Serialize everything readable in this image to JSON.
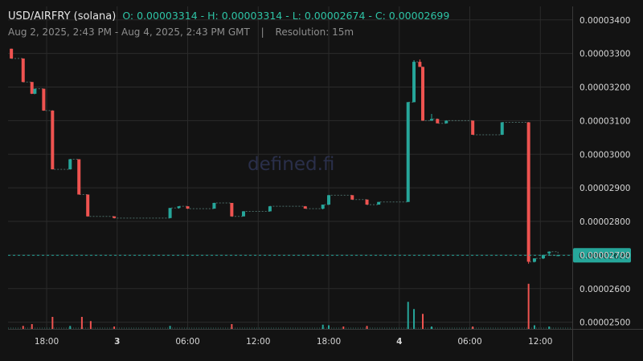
{
  "header": {
    "symbol": "USD/AIRFRY (solana)",
    "ohlc": "O: 0.00003314 - H: 0.00003314 - L: 0.00002674 - C: 0.00002699",
    "range": "Aug 2, 2025, 2:43 PM - Aug 4, 2025, 2:43 PM GMT",
    "separator": "|",
    "resolution": "Resolution: 15m"
  },
  "watermark": "defined.fi",
  "colors": {
    "up": "#26a69a",
    "down": "#ef5350",
    "background": "#131313",
    "grid": "#2b2b2b",
    "last_price": "#26a69a"
  },
  "chart_data": {
    "type": "candlestick",
    "title": "",
    "y_axis": {
      "ticks": [
        "0.00003400",
        "0.00003300",
        "0.00003200",
        "0.00003100",
        "0.00003000",
        "0.00002900",
        "0.00002800",
        "0.00002700",
        "0.00002600",
        "0.00002500"
      ],
      "range": [
        2.48e-05,
        3.44e-05
      ]
    },
    "x_axis": {
      "range": [
        "2025-08-02 14:43",
        "2025-08-04 14:43"
      ],
      "ticks": [
        {
          "label": "18:00",
          "time": "2025-08-02 18:00",
          "bold": false
        },
        {
          "label": "3",
          "time": "2025-08-03 00:00",
          "bold": true
        },
        {
          "label": "06:00",
          "time": "2025-08-03 06:00",
          "bold": false
        },
        {
          "label": "12:00",
          "time": "2025-08-03 12:00",
          "bold": false
        },
        {
          "label": "18:00",
          "time": "2025-08-03 18:00",
          "bold": false
        },
        {
          "label": "4",
          "time": "2025-08-04 00:00",
          "bold": true
        },
        {
          "label": "06:00",
          "time": "2025-08-04 06:00",
          "bold": false
        },
        {
          "label": "12:00",
          "time": "2025-08-04 12:00",
          "bold": false
        }
      ]
    },
    "last_price": {
      "value": 2.699e-05,
      "label": "0.00002699"
    },
    "candles": [
      {
        "t": "2025-08-02 15:00",
        "o": 3.314e-05,
        "h": 3.314e-05,
        "l": 3.285e-05,
        "c": 3.285e-05
      },
      {
        "t": "2025-08-02 16:00",
        "o": 3.285e-05,
        "h": 3.285e-05,
        "l": 3.215e-05,
        "c": 3.215e-05
      },
      {
        "t": "2025-08-02 16:45",
        "o": 3.215e-05,
        "h": 3.215e-05,
        "l": 3.18e-05,
        "c": 3.18e-05
      },
      {
        "t": "2025-08-02 17:00",
        "o": 3.18e-05,
        "h": 3.195e-05,
        "l": 3.18e-05,
        "c": 3.195e-05
      },
      {
        "t": "2025-08-02 17:45",
        "o": 3.195e-05,
        "h": 3.195e-05,
        "l": 3.13e-05,
        "c": 3.13e-05
      },
      {
        "t": "2025-08-02 18:30",
        "o": 3.13e-05,
        "h": 3.13e-05,
        "l": 2.955e-05,
        "c": 2.955e-05
      },
      {
        "t": "2025-08-02 20:00",
        "o": 2.955e-05,
        "h": 2.985e-05,
        "l": 2.955e-05,
        "c": 2.985e-05
      },
      {
        "t": "2025-08-02 20:45",
        "o": 2.985e-05,
        "h": 2.985e-05,
        "l": 2.88e-05,
        "c": 2.88e-05
      },
      {
        "t": "2025-08-02 21:30",
        "o": 2.88e-05,
        "h": 2.88e-05,
        "l": 2.815e-05,
        "c": 2.815e-05
      },
      {
        "t": "2025-08-02 23:45",
        "o": 2.815e-05,
        "h": 2.815e-05,
        "l": 2.81e-05,
        "c": 2.81e-05
      },
      {
        "t": "2025-08-03 04:30",
        "o": 2.81e-05,
        "h": 2.84e-05,
        "l": 2.81e-05,
        "c": 2.84e-05
      },
      {
        "t": "2025-08-03 05:15",
        "o": 2.84e-05,
        "h": 2.845e-05,
        "l": 2.838e-05,
        "c": 2.845e-05
      },
      {
        "t": "2025-08-03 06:00",
        "o": 2.845e-05,
        "h": 2.845e-05,
        "l": 2.838e-05,
        "c": 2.838e-05
      },
      {
        "t": "2025-08-03 08:15",
        "o": 2.838e-05,
        "h": 2.855e-05,
        "l": 2.838e-05,
        "c": 2.855e-05
      },
      {
        "t": "2025-08-03 09:45",
        "o": 2.855e-05,
        "h": 2.855e-05,
        "l": 2.815e-05,
        "c": 2.815e-05
      },
      {
        "t": "2025-08-03 10:45",
        "o": 2.815e-05,
        "h": 2.83e-05,
        "l": 2.815e-05,
        "c": 2.83e-05
      },
      {
        "t": "2025-08-03 13:00",
        "o": 2.83e-05,
        "h": 2.845e-05,
        "l": 2.83e-05,
        "c": 2.845e-05
      },
      {
        "t": "2025-08-03 16:00",
        "o": 2.845e-05,
        "h": 2.845e-05,
        "l": 2.838e-05,
        "c": 2.838e-05
      },
      {
        "t": "2025-08-03 17:30",
        "o": 2.838e-05,
        "h": 2.85e-05,
        "l": 2.836e-05,
        "c": 2.85e-05
      },
      {
        "t": "2025-08-03 18:00",
        "o": 2.85e-05,
        "h": 2.878e-05,
        "l": 2.85e-05,
        "c": 2.878e-05
      },
      {
        "t": "2025-08-03 20:00",
        "o": 2.878e-05,
        "h": 2.878e-05,
        "l": 2.865e-05,
        "c": 2.865e-05
      },
      {
        "t": "2025-08-03 21:15",
        "o": 2.865e-05,
        "h": 2.865e-05,
        "l": 2.85e-05,
        "c": 2.85e-05
      },
      {
        "t": "2025-08-03 22:15",
        "o": 2.85e-05,
        "h": 2.858e-05,
        "l": 2.85e-05,
        "c": 2.858e-05
      },
      {
        "t": "2025-08-04 00:45",
        "o": 2.858e-05,
        "h": 3.155e-05,
        "l": 2.858e-05,
        "c": 3.155e-05
      },
      {
        "t": "2025-08-04 01:15",
        "o": 3.155e-05,
        "h": 3.28e-05,
        "l": 3.155e-05,
        "c": 3.275e-05
      },
      {
        "t": "2025-08-04 01:45",
        "o": 3.275e-05,
        "h": 3.282e-05,
        "l": 3.26e-05,
        "c": 3.26e-05
      },
      {
        "t": "2025-08-04 02:00",
        "o": 3.26e-05,
        "h": 3.26e-05,
        "l": 3.1e-05,
        "c": 3.1e-05
      },
      {
        "t": "2025-08-04 02:45",
        "o": 3.1e-05,
        "h": 3.12e-05,
        "l": 3.1e-05,
        "c": 3.105e-05
      },
      {
        "t": "2025-08-04 03:15",
        "o": 3.105e-05,
        "h": 3.105e-05,
        "l": 3.092e-05,
        "c": 3.092e-05
      },
      {
        "t": "2025-08-04 04:00",
        "o": 3.092e-05,
        "h": 3.1e-05,
        "l": 3.092e-05,
        "c": 3.1e-05
      },
      {
        "t": "2025-08-04 06:15",
        "o": 3.1e-05,
        "h": 3.1e-05,
        "l": 3.058e-05,
        "c": 3.058e-05
      },
      {
        "t": "2025-08-04 08:45",
        "o": 3.058e-05,
        "h": 3.095e-05,
        "l": 3.058e-05,
        "c": 3.095e-05
      },
      {
        "t": "2025-08-04 11:00",
        "o": 3.095e-05,
        "h": 3.095e-05,
        "l": 2.674e-05,
        "c": 2.68e-05
      },
      {
        "t": "2025-08-04 11:30",
        "o": 2.68e-05,
        "h": 2.69e-05,
        "l": 2.678e-05,
        "c": 2.69e-05
      },
      {
        "t": "2025-08-04 12:15",
        "o": 2.69e-05,
        "h": 2.7e-05,
        "l": 2.688e-05,
        "c": 2.7e-05
      },
      {
        "t": "2025-08-04 12:45",
        "o": 2.705e-05,
        "h": 2.71e-05,
        "l": 2.7e-05,
        "c": 2.71e-05
      },
      {
        "t": "2025-08-04 13:30",
        "o": 2.699e-05,
        "h": 2.7e-05,
        "l": 2.699e-05,
        "c": 2.699e-05
      }
    ],
    "volume": [
      {
        "t": "2025-08-02 16:00",
        "v": 0.05,
        "dir": "down"
      },
      {
        "t": "2025-08-02 16:45",
        "v": 0.08,
        "dir": "down"
      },
      {
        "t": "2025-08-02 18:30",
        "v": 0.2,
        "dir": "down"
      },
      {
        "t": "2025-08-02 20:00",
        "v": 0.05,
        "dir": "up"
      },
      {
        "t": "2025-08-02 21:00",
        "v": 0.2,
        "dir": "down"
      },
      {
        "t": "2025-08-02 21:45",
        "v": 0.13,
        "dir": "down"
      },
      {
        "t": "2025-08-02 23:45",
        "v": 0.04,
        "dir": "down"
      },
      {
        "t": "2025-08-03 04:30",
        "v": 0.05,
        "dir": "up"
      },
      {
        "t": "2025-08-03 09:45",
        "v": 0.08,
        "dir": "down"
      },
      {
        "t": "2025-08-03 17:30",
        "v": 0.07,
        "dir": "up"
      },
      {
        "t": "2025-08-03 18:00",
        "v": 0.06,
        "dir": "up"
      },
      {
        "t": "2025-08-03 19:15",
        "v": 0.04,
        "dir": "down"
      },
      {
        "t": "2025-08-03 21:15",
        "v": 0.05,
        "dir": "down"
      },
      {
        "t": "2025-08-04 00:45",
        "v": 0.45,
        "dir": "up"
      },
      {
        "t": "2025-08-04 01:15",
        "v": 0.33,
        "dir": "up"
      },
      {
        "t": "2025-08-04 02:00",
        "v": 0.25,
        "dir": "down"
      },
      {
        "t": "2025-08-04 02:45",
        "v": 0.04,
        "dir": "up"
      },
      {
        "t": "2025-08-04 06:15",
        "v": 0.04,
        "dir": "down"
      },
      {
        "t": "2025-08-04 11:00",
        "v": 0.75,
        "dir": "down"
      },
      {
        "t": "2025-08-04 11:30",
        "v": 0.06,
        "dir": "up"
      },
      {
        "t": "2025-08-04 12:45",
        "v": 0.04,
        "dir": "up"
      }
    ],
    "volume_scale": "relative 0-1",
    "grid": true,
    "legend": "none"
  }
}
